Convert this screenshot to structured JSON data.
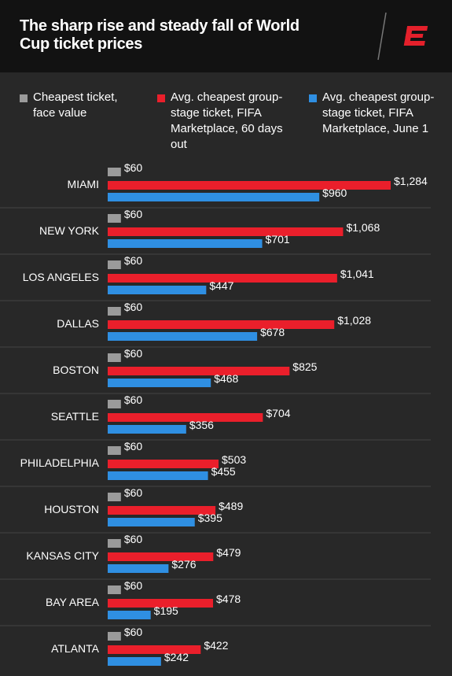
{
  "chart_data": {
    "type": "bar",
    "orientation": "horizontal",
    "title": "The sharp rise and steady fall of World Cup ticket prices",
    "categories": [
      "MIAMI",
      "NEW YORK",
      "LOS ANGELES",
      "DALLAS",
      "BOSTON",
      "SEATTLE",
      "PHILADELPHIA",
      "HOUSTON",
      "KANSAS CITY",
      "BAY AREA",
      "ATLANTA"
    ],
    "series": [
      {
        "name": "Cheapest ticket, face value",
        "color": "#9b9b9b",
        "values": [
          60,
          60,
          60,
          60,
          60,
          60,
          60,
          60,
          60,
          60,
          60
        ],
        "value_labels": [
          "$60",
          "$60",
          "$60",
          "$60",
          "$60",
          "$60",
          "$60",
          "$60",
          "$60",
          "$60",
          "$60"
        ]
      },
      {
        "name": "Avg. cheapest group-stage ticket, FIFA Marketplace, 60 days out",
        "color": "#ea1f2b",
        "values": [
          1284,
          1068,
          1041,
          1028,
          825,
          704,
          503,
          489,
          479,
          478,
          422
        ],
        "value_labels": [
          "$1,284",
          "$1,068",
          "$1,041",
          "$1,028",
          "$825",
          "$704",
          "$503",
          "$489",
          "$479",
          "$478",
          "$422"
        ]
      },
      {
        "name": "Avg. cheapest group-stage ticket, FIFA Marketplace, June 1",
        "color": "#2f8fe2",
        "values": [
          960,
          701,
          447,
          678,
          468,
          356,
          455,
          395,
          276,
          195,
          242
        ],
        "value_labels": [
          "$960",
          "$701",
          "$447",
          "$678",
          "$468",
          "$356",
          "$455",
          "$395",
          "$276",
          "$195",
          "$242"
        ]
      }
    ]
  }
}
